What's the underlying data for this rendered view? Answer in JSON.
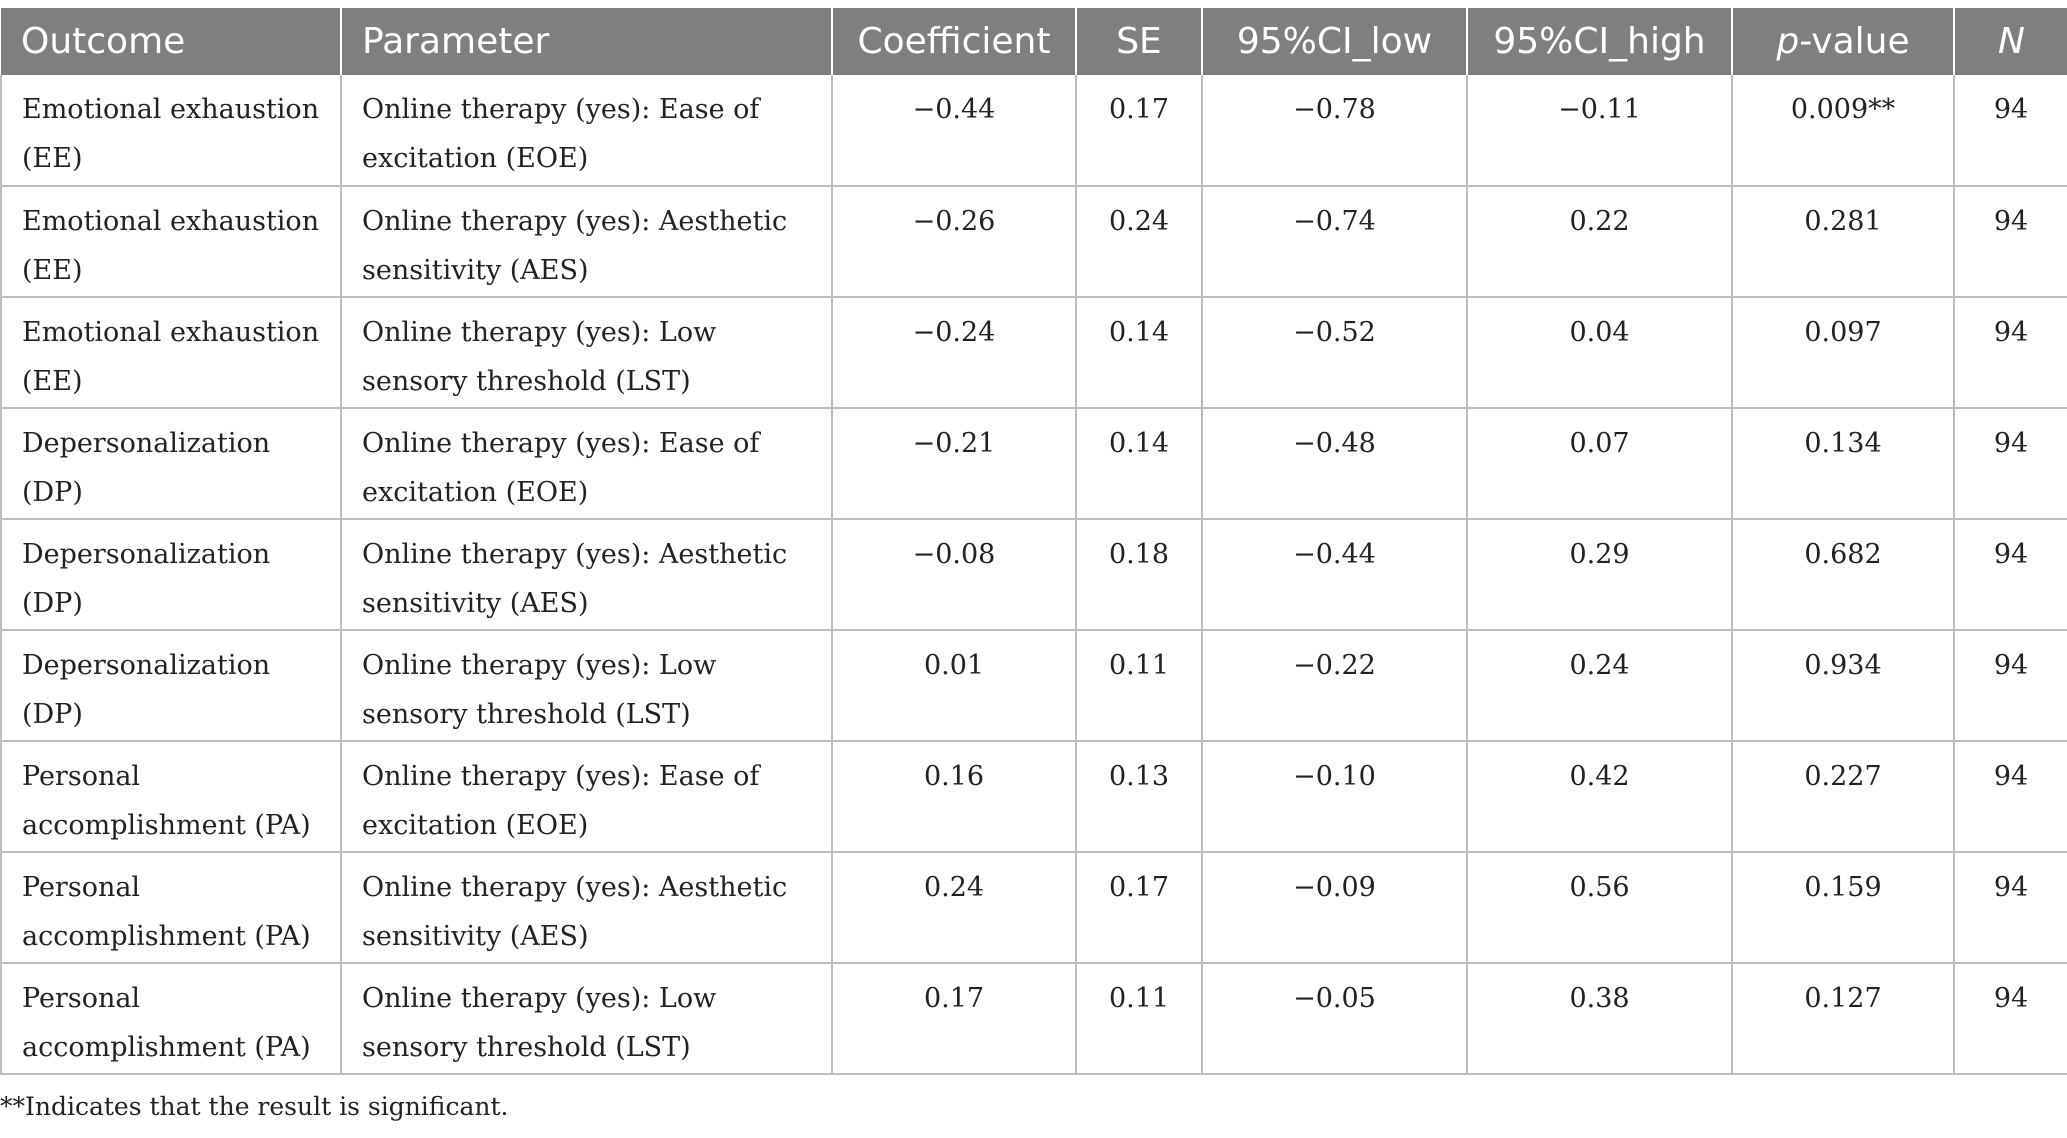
{
  "table": {
    "headers": {
      "outcome": "Outcome",
      "parameter": "Parameter",
      "coefficient": "Coefficient",
      "se": "SE",
      "ci_low": "95%CI_low",
      "ci_high": "95%CI_high",
      "p_italic": "p",
      "p_rest": "-value",
      "n": "N"
    },
    "rows": [
      {
        "outcome": "Emotional exhaustion (EE)",
        "parameter": "Online therapy (yes): Ease of excitation (EOE)",
        "coefficient": "−0.44",
        "se": "0.17",
        "ci_low": "−0.78",
        "ci_high": "−0.11",
        "p_value": "0.009**",
        "n": "94"
      },
      {
        "outcome": "Emotional exhaustion (EE)",
        "parameter": "Online therapy (yes): Aesthetic sensitivity (AES)",
        "coefficient": "−0.26",
        "se": "0.24",
        "ci_low": "−0.74",
        "ci_high": "0.22",
        "p_value": "0.281",
        "n": "94"
      },
      {
        "outcome": "Emotional exhaustion (EE)",
        "parameter": "Online therapy (yes): Low sensory threshold (LST)",
        "coefficient": "−0.24",
        "se": "0.14",
        "ci_low": "−0.52",
        "ci_high": "0.04",
        "p_value": "0.097",
        "n": "94"
      },
      {
        "outcome": "Depersonalization (DP)",
        "parameter": "Online therapy (yes): Ease of excitation (EOE)",
        "coefficient": "−0.21",
        "se": "0.14",
        "ci_low": "−0.48",
        "ci_high": "0.07",
        "p_value": "0.134",
        "n": "94"
      },
      {
        "outcome": "Depersonalization (DP)",
        "parameter": "Online therapy (yes): Aesthetic sensitivity (AES)",
        "coefficient": "−0.08",
        "se": "0.18",
        "ci_low": "−0.44",
        "ci_high": "0.29",
        "p_value": "0.682",
        "n": "94"
      },
      {
        "outcome": "Depersonalization (DP)",
        "parameter": "Online therapy (yes): Low sensory threshold (LST)",
        "coefficient": "0.01",
        "se": "0.11",
        "ci_low": "−0.22",
        "ci_high": "0.24",
        "p_value": "0.934",
        "n": "94"
      },
      {
        "outcome": "Personal accomplishment (PA)",
        "parameter": "Online therapy (yes): Ease of excitation (EOE)",
        "coefficient": "0.16",
        "se": "0.13",
        "ci_low": "−0.10",
        "ci_high": "0.42",
        "p_value": "0.227",
        "n": "94"
      },
      {
        "outcome": "Personal accomplishment (PA)",
        "parameter": "Online therapy (yes): Aesthetic sensitivity (AES)",
        "coefficient": "0.24",
        "se": "0.17",
        "ci_low": "−0.09",
        "ci_high": "0.56",
        "p_value": "0.159",
        "n": "94"
      },
      {
        "outcome": "Personal accomplishment (PA)",
        "parameter": "Online therapy (yes): Low sensory threshold (LST)",
        "coefficient": "0.17",
        "se": "0.11",
        "ci_low": "−0.05",
        "ci_high": "0.38",
        "p_value": "0.127",
        "n": "94"
      }
    ]
  },
  "footnote": "**Indicates that the result is significant."
}
